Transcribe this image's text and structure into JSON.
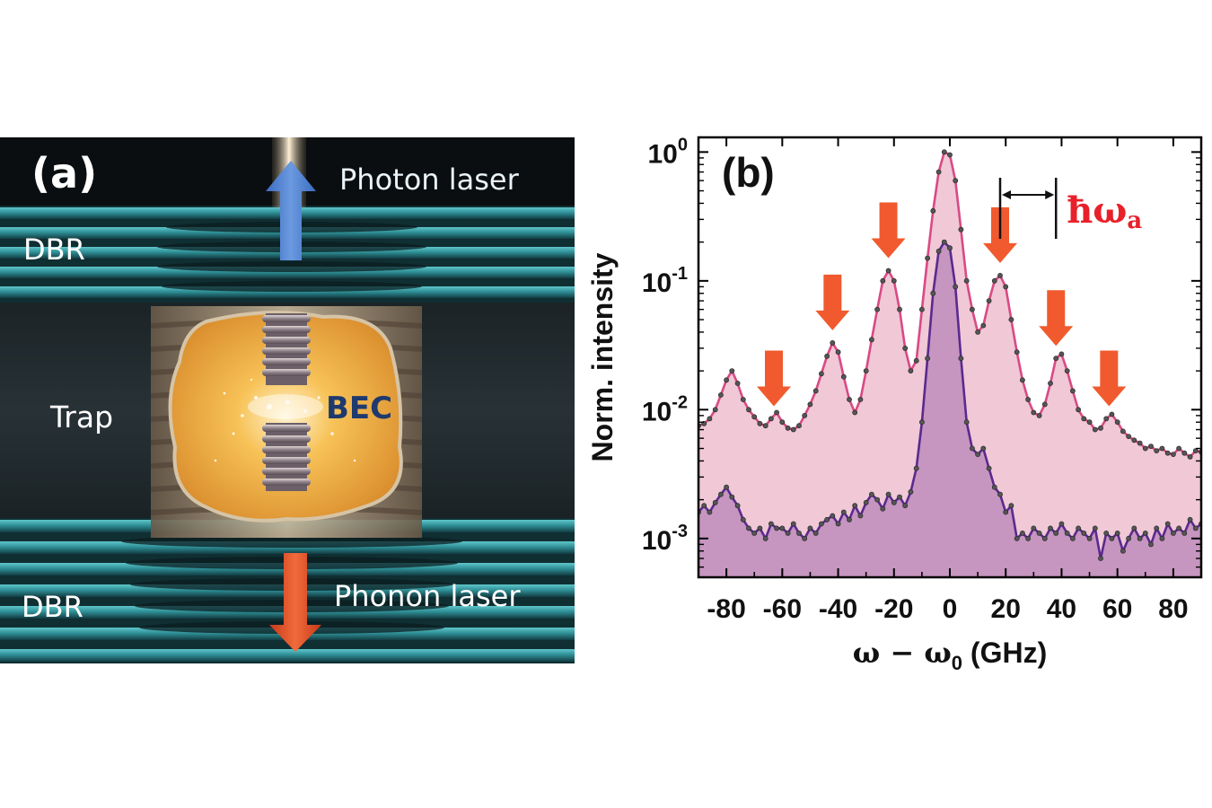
{
  "panel_a": {
    "label": "(a)",
    "labels": {
      "photon_laser": "Photon laser",
      "phonon_laser": "Phonon laser",
      "dbr_top": "DBR",
      "dbr_bottom": "DBR",
      "trap": "Trap",
      "bec": "BEC"
    },
    "colors": {
      "background": "#101418",
      "dbr": "#2e8f95",
      "bec_core": "#f3b24a",
      "photon_arrow": "#4f7fd0",
      "phonon_arrow": "#e14a24"
    }
  },
  "chart_data": {
    "type": "line",
    "panel_label": "(b)",
    "xlabel_main": "ω − ω",
    "xlabel_sub": "0",
    "xlabel_unit": " (GHz)",
    "ylabel": "Norm. intensity",
    "xlim": [
      -90,
      90
    ],
    "ylim": [
      0.0005,
      1.3
    ],
    "yscale": "log",
    "xticks": [
      -80,
      -60,
      -40,
      -20,
      0,
      20,
      40,
      60,
      80
    ],
    "yticks": [
      {
        "value": 1,
        "base": "10",
        "exp": "0"
      },
      {
        "value": 0.1,
        "base": "10",
        "exp": "-1"
      },
      {
        "value": 0.01,
        "base": "10",
        "exp": "-2"
      },
      {
        "value": 0.001,
        "base": "10",
        "exp": "-3"
      }
    ],
    "annotation": {
      "text": "ħω",
      "sub": "a",
      "from_x": 18,
      "to_x": 38,
      "color": "#e8202a"
    },
    "arrows_x": [
      -63,
      -42,
      -22,
      18,
      38,
      57
    ],
    "series": [
      {
        "color": "#d94a83",
        "fill": "#f0c8d6",
        "x": [
          -90,
          -88,
          -86,
          -84,
          -82,
          -80,
          -78,
          -76,
          -74,
          -72,
          -70,
          -68,
          -66,
          -64,
          -62,
          -60,
          -58,
          -56,
          -54,
          -52,
          -50,
          -48,
          -46,
          -44,
          -42,
          -40,
          -38,
          -36,
          -34,
          -32,
          -30,
          -28,
          -26,
          -24,
          -22,
          -20,
          -18,
          -16,
          -14,
          -12,
          -10,
          -8,
          -6,
          -4,
          -2,
          0,
          2,
          4,
          6,
          8,
          10,
          12,
          14,
          16,
          18,
          20,
          22,
          24,
          26,
          28,
          30,
          32,
          34,
          36,
          38,
          40,
          42,
          44,
          46,
          48,
          50,
          52,
          54,
          56,
          58,
          60,
          62,
          64,
          66,
          68,
          70,
          72,
          74,
          76,
          78,
          80,
          82,
          84,
          86,
          88,
          90
        ],
        "y": [
          0.0075,
          0.0078,
          0.0085,
          0.01,
          0.013,
          0.017,
          0.02,
          0.016,
          0.012,
          0.01,
          0.0088,
          0.0078,
          0.0075,
          0.0085,
          0.0095,
          0.008,
          0.0072,
          0.007,
          0.0075,
          0.009,
          0.011,
          0.014,
          0.019,
          0.026,
          0.033,
          0.028,
          0.018,
          0.012,
          0.0095,
          0.012,
          0.02,
          0.035,
          0.06,
          0.1,
          0.12,
          0.1,
          0.06,
          0.03,
          0.02,
          0.024,
          0.06,
          0.15,
          0.35,
          0.7,
          1.0,
          0.95,
          0.6,
          0.25,
          0.1,
          0.06,
          0.04,
          0.045,
          0.07,
          0.1,
          0.11,
          0.09,
          0.05,
          0.028,
          0.017,
          0.012,
          0.0095,
          0.009,
          0.011,
          0.016,
          0.025,
          0.027,
          0.02,
          0.014,
          0.01,
          0.0085,
          0.008,
          0.007,
          0.0072,
          0.0085,
          0.0092,
          0.008,
          0.0068,
          0.0062,
          0.0058,
          0.0055,
          0.005,
          0.0052,
          0.0048,
          0.005,
          0.0046,
          0.0045,
          0.005,
          0.0046,
          0.0043,
          0.0048,
          0.0047
        ]
      },
      {
        "color": "#5a2a8e",
        "fill": "#c392bf",
        "x": [
          -90,
          -88,
          -86,
          -84,
          -82,
          -80,
          -78,
          -76,
          -74,
          -72,
          -70,
          -68,
          -66,
          -64,
          -62,
          -60,
          -58,
          -56,
          -54,
          -52,
          -50,
          -48,
          -46,
          -44,
          -42,
          -40,
          -38,
          -36,
          -34,
          -32,
          -30,
          -28,
          -26,
          -24,
          -22,
          -20,
          -18,
          -16,
          -14,
          -12,
          -10,
          -8,
          -6,
          -4,
          -2,
          0,
          2,
          4,
          6,
          8,
          10,
          12,
          14,
          16,
          18,
          20,
          22,
          24,
          26,
          28,
          30,
          32,
          34,
          36,
          38,
          40,
          42,
          44,
          46,
          48,
          50,
          52,
          54,
          56,
          58,
          60,
          62,
          64,
          66,
          68,
          70,
          72,
          74,
          76,
          78,
          80,
          82,
          84,
          86,
          88,
          90
        ],
        "y": [
          0.0016,
          0.0018,
          0.0016,
          0.0019,
          0.0022,
          0.0025,
          0.0021,
          0.0018,
          0.0014,
          0.0012,
          0.0011,
          0.0012,
          0.001,
          0.0013,
          0.0012,
          0.0012,
          0.0011,
          0.0013,
          0.0011,
          0.001,
          0.0012,
          0.0011,
          0.0013,
          0.0014,
          0.0015,
          0.0013,
          0.0016,
          0.0014,
          0.0018,
          0.0015,
          0.0019,
          0.0022,
          0.002,
          0.0017,
          0.0022,
          0.0019,
          0.0021,
          0.0018,
          0.0023,
          0.0035,
          0.008,
          0.025,
          0.08,
          0.17,
          0.2,
          0.18,
          0.09,
          0.025,
          0.008,
          0.005,
          0.0045,
          0.005,
          0.0035,
          0.0025,
          0.0022,
          0.0016,
          0.0018,
          0.001,
          0.0011,
          0.001,
          0.0012,
          0.0011,
          0.001,
          0.0012,
          0.0011,
          0.0013,
          0.0011,
          0.001,
          0.0012,
          0.0011,
          0.001,
          0.0012,
          0.0007,
          0.0011,
          0.001,
          0.0011,
          0.0008,
          0.001,
          0.0012,
          0.001,
          0.0011,
          0.0009,
          0.0012,
          0.001,
          0.0013,
          0.0011,
          0.0012,
          0.0011,
          0.0014,
          0.0012,
          0.0013
        ]
      }
    ]
  }
}
